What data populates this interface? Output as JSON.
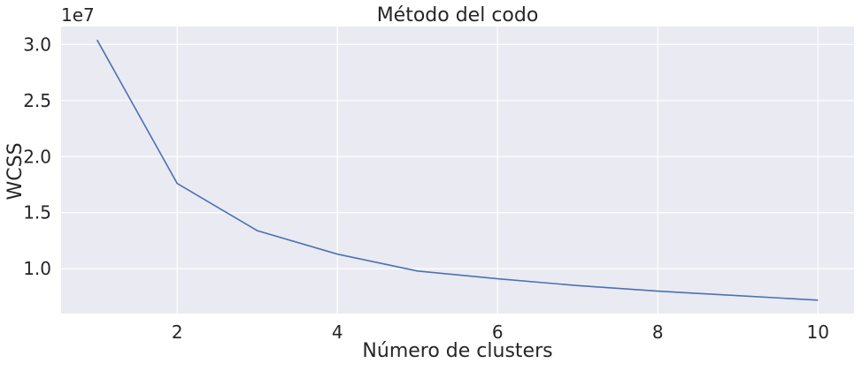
{
  "chart_data": {
    "type": "line",
    "title": "Método del codo",
    "xlabel": "Número de clusters",
    "ylabel": "WCSS",
    "y_offset_label": "1e7",
    "x": [
      1,
      2,
      3,
      4,
      5,
      6,
      7,
      8,
      9,
      10
    ],
    "series": [
      {
        "values": [
          30.4,
          17.6,
          13.4,
          11.3,
          9.8,
          9.1,
          8.5,
          8.0,
          7.6,
          7.2
        ]
      }
    ],
    "xlim": [
      0.55,
      10.45
    ],
    "ylim": [
      6.0,
      31.6
    ],
    "x_ticks": [
      2,
      4,
      6,
      8,
      10
    ],
    "x_tick_labels": [
      "2",
      "4",
      "6",
      "8",
      "10"
    ],
    "y_ticks": [
      10,
      15,
      20,
      25,
      30
    ],
    "y_tick_labels": [
      "1.0",
      "1.5",
      "2.0",
      "2.5",
      "3.0"
    ],
    "grid": true,
    "colors": {
      "background": "#eaeaf2",
      "grid": "#ffffff",
      "line": "#4c72b0",
      "text": "#262626"
    }
  }
}
